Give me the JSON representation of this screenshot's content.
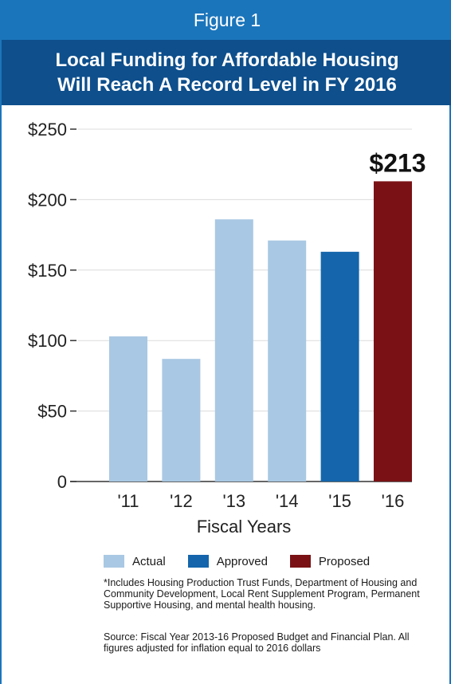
{
  "figure_label": "Figure 1",
  "title_line1": "Local Funding for Affordable Housing",
  "title_line2": "Will Reach A Record Level in FY 2016",
  "colors": {
    "header_light": "#1b75bb",
    "header_dark": "#0e4f8c",
    "actual": "#a9c8e3",
    "approved": "#1465ac",
    "proposed": "#7a1215"
  },
  "chart_data": {
    "type": "bar",
    "categories": [
      "'11",
      "'12",
      "'13",
      "'14",
      "'15",
      "'16"
    ],
    "values": [
      103,
      87,
      186,
      171,
      163,
      213
    ],
    "status": [
      "actual",
      "actual",
      "actual",
      "actual",
      "approved",
      "proposed"
    ],
    "y_ticks": [
      {
        "value": 0,
        "label": "0"
      },
      {
        "value": 50,
        "label": "$50"
      },
      {
        "value": 100,
        "label": "$100"
      },
      {
        "value": 150,
        "label": "$150"
      },
      {
        "value": 200,
        "label": "$200"
      },
      {
        "value": 250,
        "label": "$250"
      }
    ],
    "ylim": [
      0,
      250
    ],
    "grid": true,
    "xlabel": "Fiscal Years",
    "data_label": {
      "index": 5,
      "text": "$213"
    }
  },
  "legend": [
    {
      "key": "actual",
      "label": "Actual"
    },
    {
      "key": "approved",
      "label": "Approved"
    },
    {
      "key": "proposed",
      "label": "Proposed"
    }
  ],
  "note": "*Includes Housing Production Trust Funds, Department of Housing and Community Development, Local Rent Supplement Program, Permanent Supportive Housing, and mental health housing.",
  "source": "Source: Fiscal Year 2013-16 Proposed Budget and Financial Plan. All figures adjusted for inflation equal to 2016 dollars"
}
